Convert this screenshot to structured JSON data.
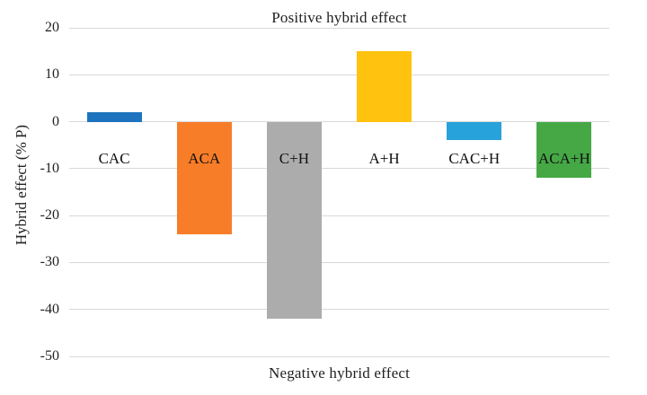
{
  "chart_data": {
    "type": "bar",
    "title_top": "Positive hybrid effect",
    "title_bottom": "Negative hybrid effect",
    "ylabel": "Hybrid effect (% P)",
    "categories": [
      "CAC",
      "ACA",
      "C+H",
      "A+H",
      "CAC+H",
      "ACA+H"
    ],
    "values": [
      2,
      -24,
      -42,
      15,
      -4,
      -12
    ],
    "bar_colors": [
      "#1e73be",
      "#f87d28",
      "#acacac",
      "#ffc20e",
      "#27a2db",
      "#45a845"
    ],
    "ylim": [
      -50,
      20
    ],
    "yticks": [
      20,
      10,
      0,
      -10,
      -20,
      -30,
      -40,
      -50
    ],
    "grid": true,
    "gridline_color": "#d9d9d9",
    "legend_position": "none"
  }
}
